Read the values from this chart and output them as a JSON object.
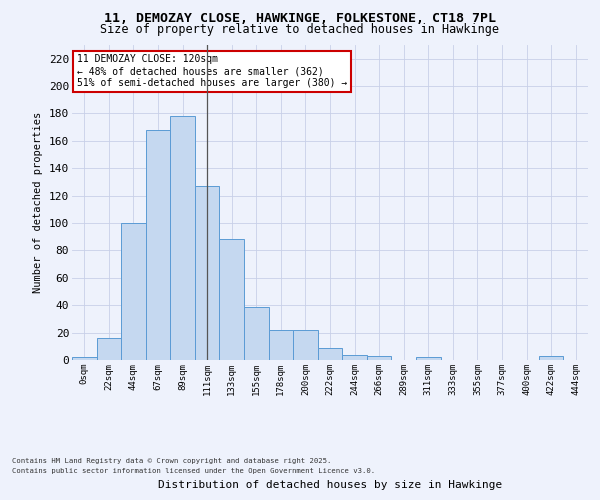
{
  "title_line1": "11, DEMOZAY CLOSE, HAWKINGE, FOLKESTONE, CT18 7PL",
  "title_line2": "Size of property relative to detached houses in Hawkinge",
  "xlabel": "Distribution of detached houses by size in Hawkinge",
  "ylabel": "Number of detached properties",
  "bar_labels": [
    "0sqm",
    "22sqm",
    "44sqm",
    "67sqm",
    "89sqm",
    "111sqm",
    "133sqm",
    "155sqm",
    "178sqm",
    "200sqm",
    "222sqm",
    "244sqm",
    "266sqm",
    "289sqm",
    "311sqm",
    "333sqm",
    "355sqm",
    "377sqm",
    "400sqm",
    "422sqm",
    "444sqm"
  ],
  "bar_values": [
    2,
    16,
    100,
    168,
    178,
    127,
    88,
    39,
    22,
    22,
    9,
    4,
    3,
    0,
    2,
    0,
    0,
    0,
    0,
    3,
    0
  ],
  "bar_color": "#c5d8f0",
  "bar_edge_color": "#5b9bd5",
  "background_color": "#eef2fc",
  "grid_color": "#c8d0e8",
  "annotation_text": "11 DEMOZAY CLOSE: 120sqm\n← 48% of detached houses are smaller (362)\n51% of semi-detached houses are larger (380) →",
  "annotation_box_color": "#ffffff",
  "annotation_box_edge": "#cc0000",
  "property_bar_index": 5,
  "ylim": [
    0,
    230
  ],
  "yticks": [
    0,
    20,
    40,
    60,
    80,
    100,
    120,
    140,
    160,
    180,
    200,
    220
  ],
  "footer_line1": "Contains HM Land Registry data © Crown copyright and database right 2025.",
  "footer_line2": "Contains public sector information licensed under the Open Government Licence v3.0."
}
